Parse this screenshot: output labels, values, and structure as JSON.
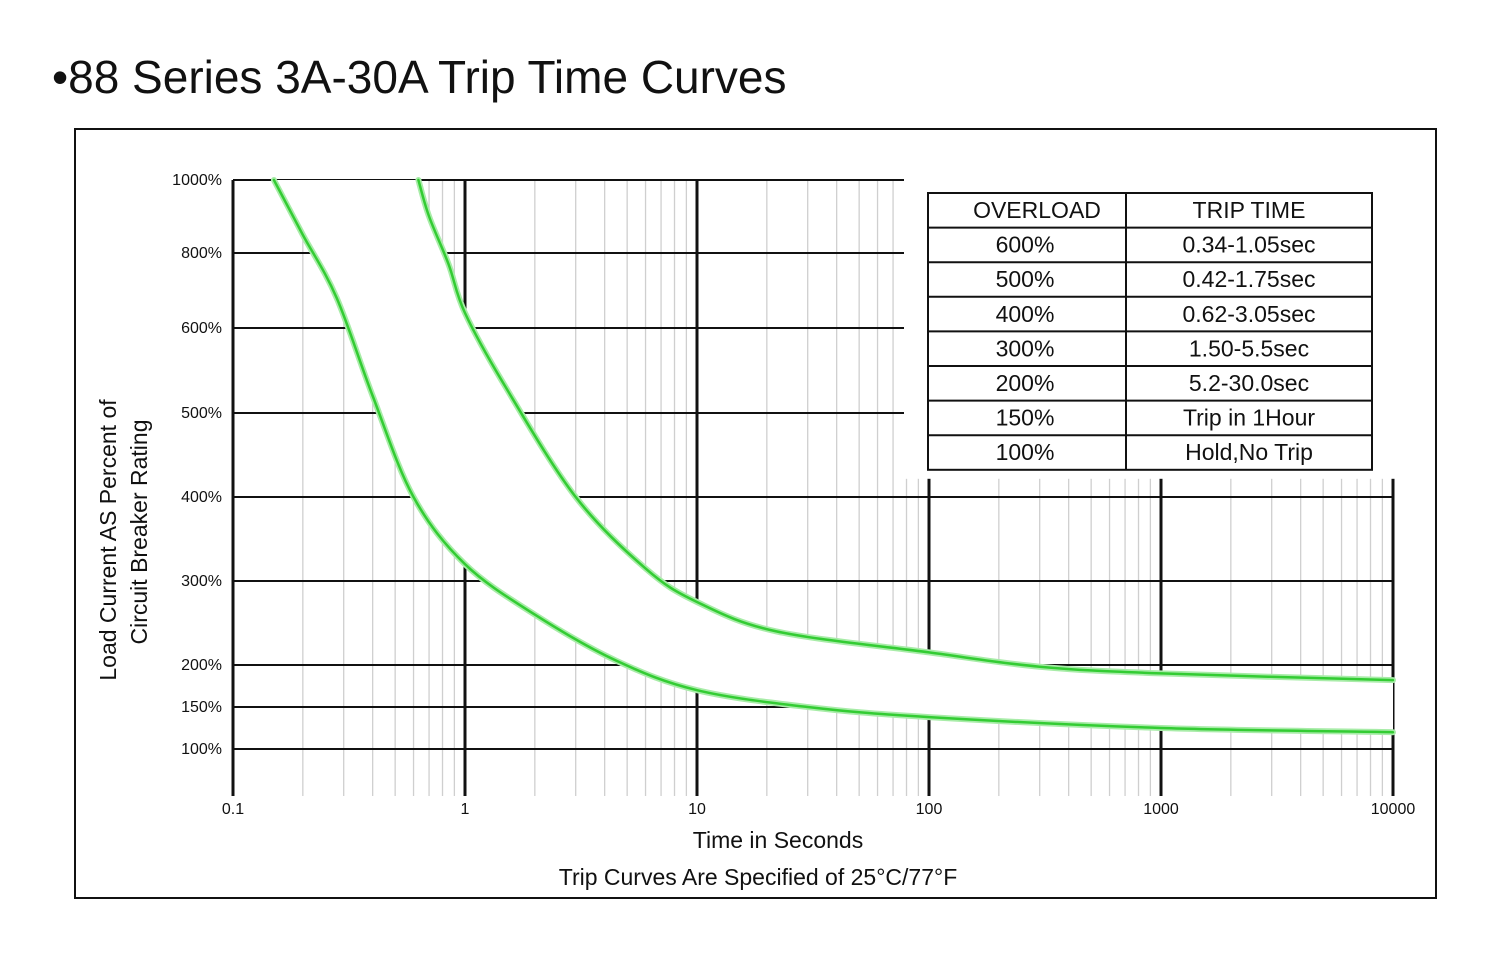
{
  "title": "•88 Series 3A-30A Trip Time Curves",
  "chart_data": {
    "type": "line",
    "title": "•88 Series 3A-30A Trip Time Curves",
    "xlabel": "Time in Seconds",
    "subtitle": "Trip Curves Are Specified of 25°C/77°F",
    "ylabel_line1": "Load Current AS Percent of",
    "ylabel_line2": "Circuit Breaker Rating",
    "x_scale": "log",
    "xlim": [
      0.1,
      10000
    ],
    "x_ticks": [
      0.1,
      1,
      10,
      100,
      1000,
      10000
    ],
    "x_tick_labels": [
      "0.1",
      "1",
      "10",
      "100",
      "1000",
      "10000"
    ],
    "y_ticks": [
      1000,
      800,
      600,
      500,
      400,
      300,
      200,
      150,
      100
    ],
    "y_tick_labels": [
      "1000%",
      "800%",
      "600%",
      "500%",
      "400%",
      "300%",
      "200%",
      "150%",
      "100%"
    ],
    "grid": true,
    "series": [
      {
        "color": "#33cc33",
        "points": [
          [
            0.15,
            1000
          ],
          [
            0.2,
            850
          ],
          [
            0.28,
            680
          ],
          [
            0.4,
            520
          ],
          [
            0.6,
            400
          ],
          [
            1.0,
            320
          ],
          [
            2.0,
            260
          ],
          [
            4.5,
            205
          ],
          [
            10,
            170
          ],
          [
            30,
            150
          ],
          [
            100,
            138
          ],
          [
            1000,
            125
          ],
          [
            10000,
            120
          ]
        ]
      },
      {
        "color": "#33cc33",
        "points": [
          [
            0.63,
            1000
          ],
          [
            0.7,
            900
          ],
          [
            0.85,
            770
          ],
          [
            1.0,
            640
          ],
          [
            1.5,
            530
          ],
          [
            3.0,
            400
          ],
          [
            6.0,
            315
          ],
          [
            10,
            275
          ],
          [
            22,
            240
          ],
          [
            100,
            215
          ],
          [
            300,
            198
          ],
          [
            1000,
            190
          ],
          [
            10000,
            182
          ]
        ]
      }
    ],
    "table": {
      "headers": [
        "OVERLOAD",
        "TRIP TIME"
      ],
      "rows": [
        [
          "600%",
          "0.34-1.05sec"
        ],
        [
          "500%",
          "0.42-1.75sec"
        ],
        [
          "400%",
          "0.62-3.05sec"
        ],
        [
          "300%",
          "1.50-5.5sec"
        ],
        [
          "200%",
          "5.2-30.0sec"
        ],
        [
          "150%",
          "Trip in 1Hour"
        ],
        [
          "100%",
          "Hold,No Trip"
        ]
      ]
    }
  }
}
